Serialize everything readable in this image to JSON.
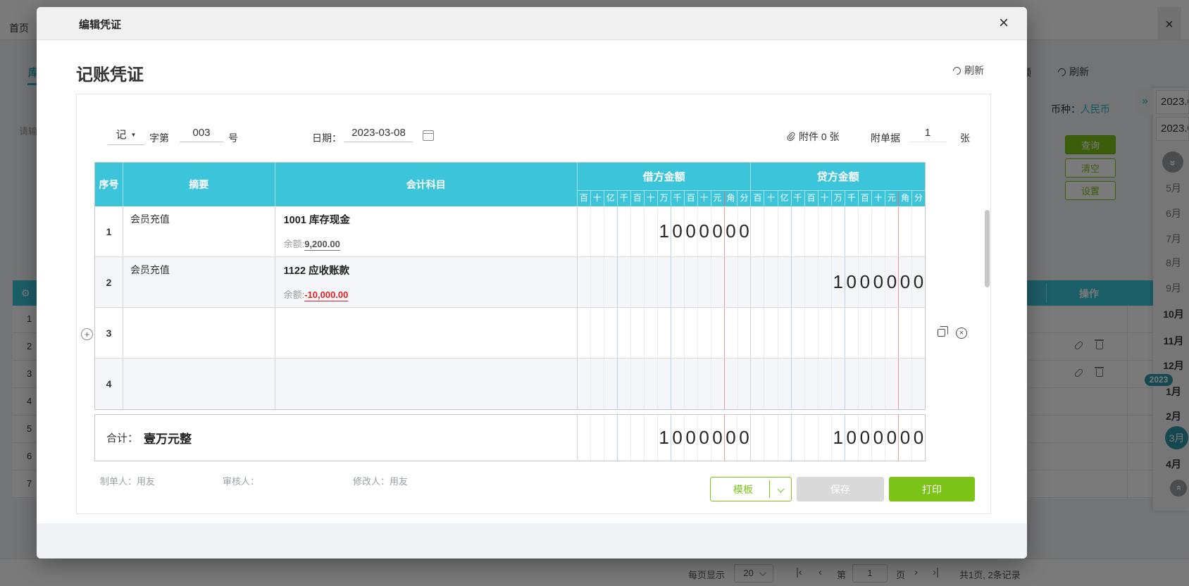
{
  "colors": {
    "teal": "#3bc4da",
    "green": "#7dc418",
    "accent": "#2fb0c6",
    "red": "#e02020"
  },
  "background": {
    "home_nav": "首页",
    "left_tab": "库",
    "left_placeholder": "请输",
    "left_row_numbers": [
      "1",
      "2",
      "3",
      "4",
      "5",
      "6",
      "7"
    ],
    "toolbar_partial": "频",
    "refresh_label": "刷新",
    "currency_label": "币种：",
    "currency_value": "人民币",
    "query_btn": "查询",
    "clear_btn": "清空",
    "settings_btn": "设置",
    "action_col_header": "操作",
    "close_glyph": "×",
    "rail": {
      "expander": "»",
      "date_from": "2023.0",
      "date_to": "2023.0",
      "year_badge": "2023",
      "months": [
        "5月",
        "6月",
        "7月",
        "8月",
        "9月",
        "10月",
        "11月",
        "12月",
        "1月",
        "2月",
        "3月",
        "4月"
      ]
    },
    "pagination": {
      "per_page_label": "每页显示",
      "per_page_value": "20",
      "page_prefix": "第",
      "page_value": "1",
      "page_suffix": "页",
      "summary": "共1页, 2条记录"
    }
  },
  "modal": {
    "title": "编辑凭证",
    "close_glyph": "×",
    "voucher_title": "记账凭证",
    "refresh_label": "刷新",
    "head": {
      "type_value": "记",
      "word_label": "字第",
      "number_value": "003",
      "number_suffix": "号",
      "date_label": "日期：",
      "date_value": "2023-03-08",
      "attachment_label": "附件 0 张",
      "receipt_label": "附单据",
      "receipt_value": "1",
      "receipt_unit": "张"
    },
    "table": {
      "col_seq": "序号",
      "col_summary": "摘要",
      "col_account": "会计科目",
      "col_debit": "借方金额",
      "col_credit": "贷方金额",
      "digit_columns": [
        "百",
        "十",
        "亿",
        "千",
        "百",
        "十",
        "万",
        "千",
        "百",
        "十",
        "元",
        "角",
        "分"
      ],
      "rows": [
        {
          "seq": "1",
          "summary": "会员充值",
          "account": "1001 库存现金",
          "balance_label": "余额:",
          "balance_value": "9,200.00",
          "debit": "1000000",
          "credit": ""
        },
        {
          "seq": "2",
          "summary": "会员充值",
          "account": "1122 应收账款",
          "balance_label": "余额:",
          "balance_value": "-10,000.00",
          "debit": "",
          "credit": "1000000"
        },
        {
          "seq": "3",
          "summary": "",
          "account": "",
          "debit": "",
          "credit": ""
        },
        {
          "seq": "4",
          "summary": "",
          "account": "",
          "debit": "",
          "credit": ""
        }
      ],
      "total": {
        "label": "合计：",
        "in_words": "壹万元整",
        "debit": "1000000",
        "credit": "1000000"
      }
    },
    "footer": {
      "creator_label": "制单人：",
      "creator_value": "用友",
      "reviewer_label": "审核人：",
      "reviewer_value": "",
      "modifier_label": "修改人：",
      "modifier_value": "用友",
      "template_btn": "模板",
      "save_btn": "保存",
      "print_btn": "打印"
    }
  }
}
